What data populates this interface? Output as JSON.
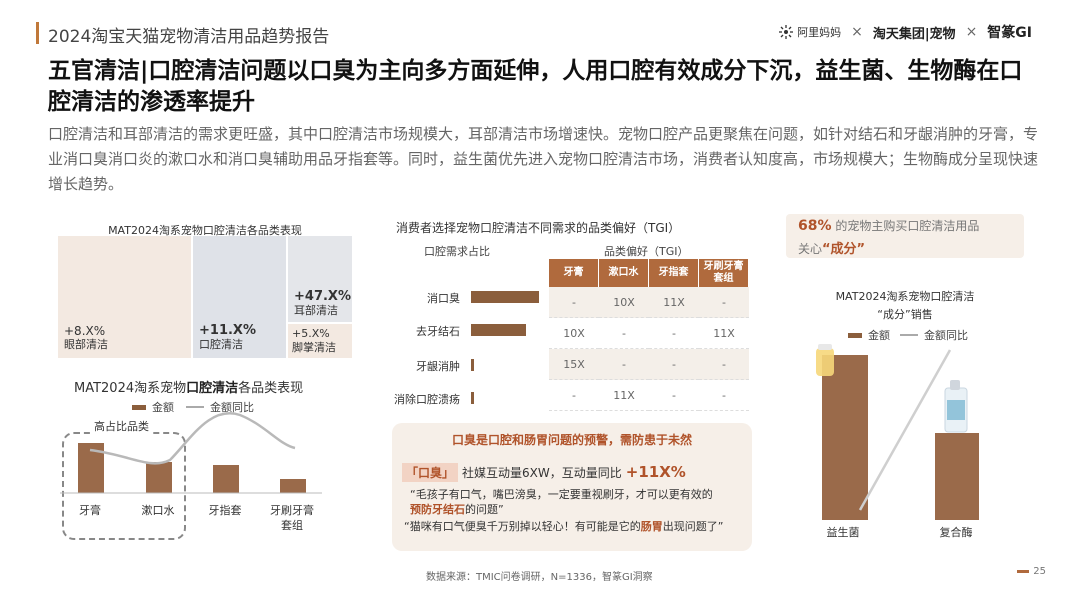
{
  "header": {
    "report_title": "2024淘宝天猫宠物清洁用品趋势报告",
    "logo_alimama": "阿里妈妈",
    "logo_taotian": "淘天集团|宠物",
    "logo_zhimeng": "智篆GI",
    "separator": "×"
  },
  "headline": "五官清洁|口腔清洁问题以口臭为主向多方面延伸，人用口腔有效成分下沉，益生菌、生物酶在口腔清洁的渗透率提升",
  "intro": "口腔清洁和耳部清洁的需求更旺盛，其中口腔清洁市场规模大，耳部清洁市场增速快。宠物口腔产品更聚焦在问题，如针对结石和牙龈消肿的牙膏，专业消口臭消口炎的漱口水和消口臭辅助用品牙指套等。同时，益生菌优先进入宠物口腔清洁市场，消费者认知度高，市场规模大；生物酶成分呈现快速增长趋势。",
  "treemap": {
    "title": "MAT2024淘系宠物口腔清洁各品类表现",
    "cells": [
      {
        "value": "+8.X%",
        "label": "眼部清洁",
        "color": "#f3e9e1"
      },
      {
        "value": "+11.X%",
        "label": "口腔清洁",
        "color": "#dfe2e8"
      },
      {
        "value": "+47.X%",
        "label": "耳部清洁",
        "color": "#e4e6ea"
      },
      {
        "value": "+5.X%",
        "label": "脚掌清洁",
        "color": "#f3e9e1"
      }
    ]
  },
  "bar_chart_1": {
    "title_prefix": "MAT2024淘系宠物",
    "title_bold": "口腔清洁",
    "title_suffix": "各品类表现",
    "legend_bar": "金额",
    "legend_line": "金额同比",
    "highlight_label": "高占比品类",
    "categories": [
      "牙膏",
      "漱口水",
      "牙指套",
      "牙刷牙膏套组"
    ],
    "category_lines": [
      [
        "牙膏"
      ],
      [
        "漱口水"
      ],
      [
        "牙指套"
      ],
      [
        "牙刷牙膏",
        "套组"
      ]
    ]
  },
  "tgi_section": {
    "title": "消费者选择宠物口腔清洁不同需求的品类偏好（TGI）",
    "left_sub": "口腔需求占比",
    "right_sub": "品类偏好（TGI）",
    "needs": [
      "消口臭",
      "去牙结石",
      "牙龈消肿",
      "消除口腔溃疡"
    ],
    "columns": [
      "牙膏",
      "漱口水",
      "牙指套",
      "牙刷牙膏套组"
    ],
    "col_lines": [
      [
        "牙膏"
      ],
      [
        "漱口水"
      ],
      [
        "牙指套"
      ],
      [
        "牙刷牙膏",
        "套组"
      ]
    ],
    "rows": [
      [
        "-",
        "10X",
        "11X",
        "-"
      ],
      [
        "10X",
        "-",
        "-",
        "11X"
      ],
      [
        "15X",
        "-",
        "-",
        "-"
      ],
      [
        "-",
        "11X",
        "-",
        "-"
      ]
    ]
  },
  "callout": {
    "title": "口臭是口腔和肠胃问题的预警，需防患于未然",
    "tag": "「口臭」",
    "text": "社媒互动量6XW，互动量同比",
    "pct": "+11X%",
    "quote1_a": "“毛孩子有口气，嘴巴滂臭，一定要重视刷牙，才可以更有效的",
    "quote1_b": "预防牙结石",
    "quote1_c": "的问题”",
    "quote2_a": "“猫咪有口气便臭千万别掉以轻心！有可能是它的",
    "quote2_b": "肠胃",
    "quote2_c": "出现问题了”"
  },
  "right": {
    "stat_pct": "68%",
    "stat_text1": "的宠物主购买口腔清洁用品",
    "stat_text2a": "关心",
    "stat_text2b": "“成分”",
    "chart_title1": "MAT2024淘系宠物口腔清洁",
    "chart_title2": "“成分”销售",
    "legend_bar": "金额",
    "legend_line": "金额同比",
    "categories": [
      "益生菌",
      "复合酶"
    ]
  },
  "footer": {
    "source": "数据来源：TMIC问卷调研，N=1336，智篆GI洞察",
    "page": "25"
  }
}
